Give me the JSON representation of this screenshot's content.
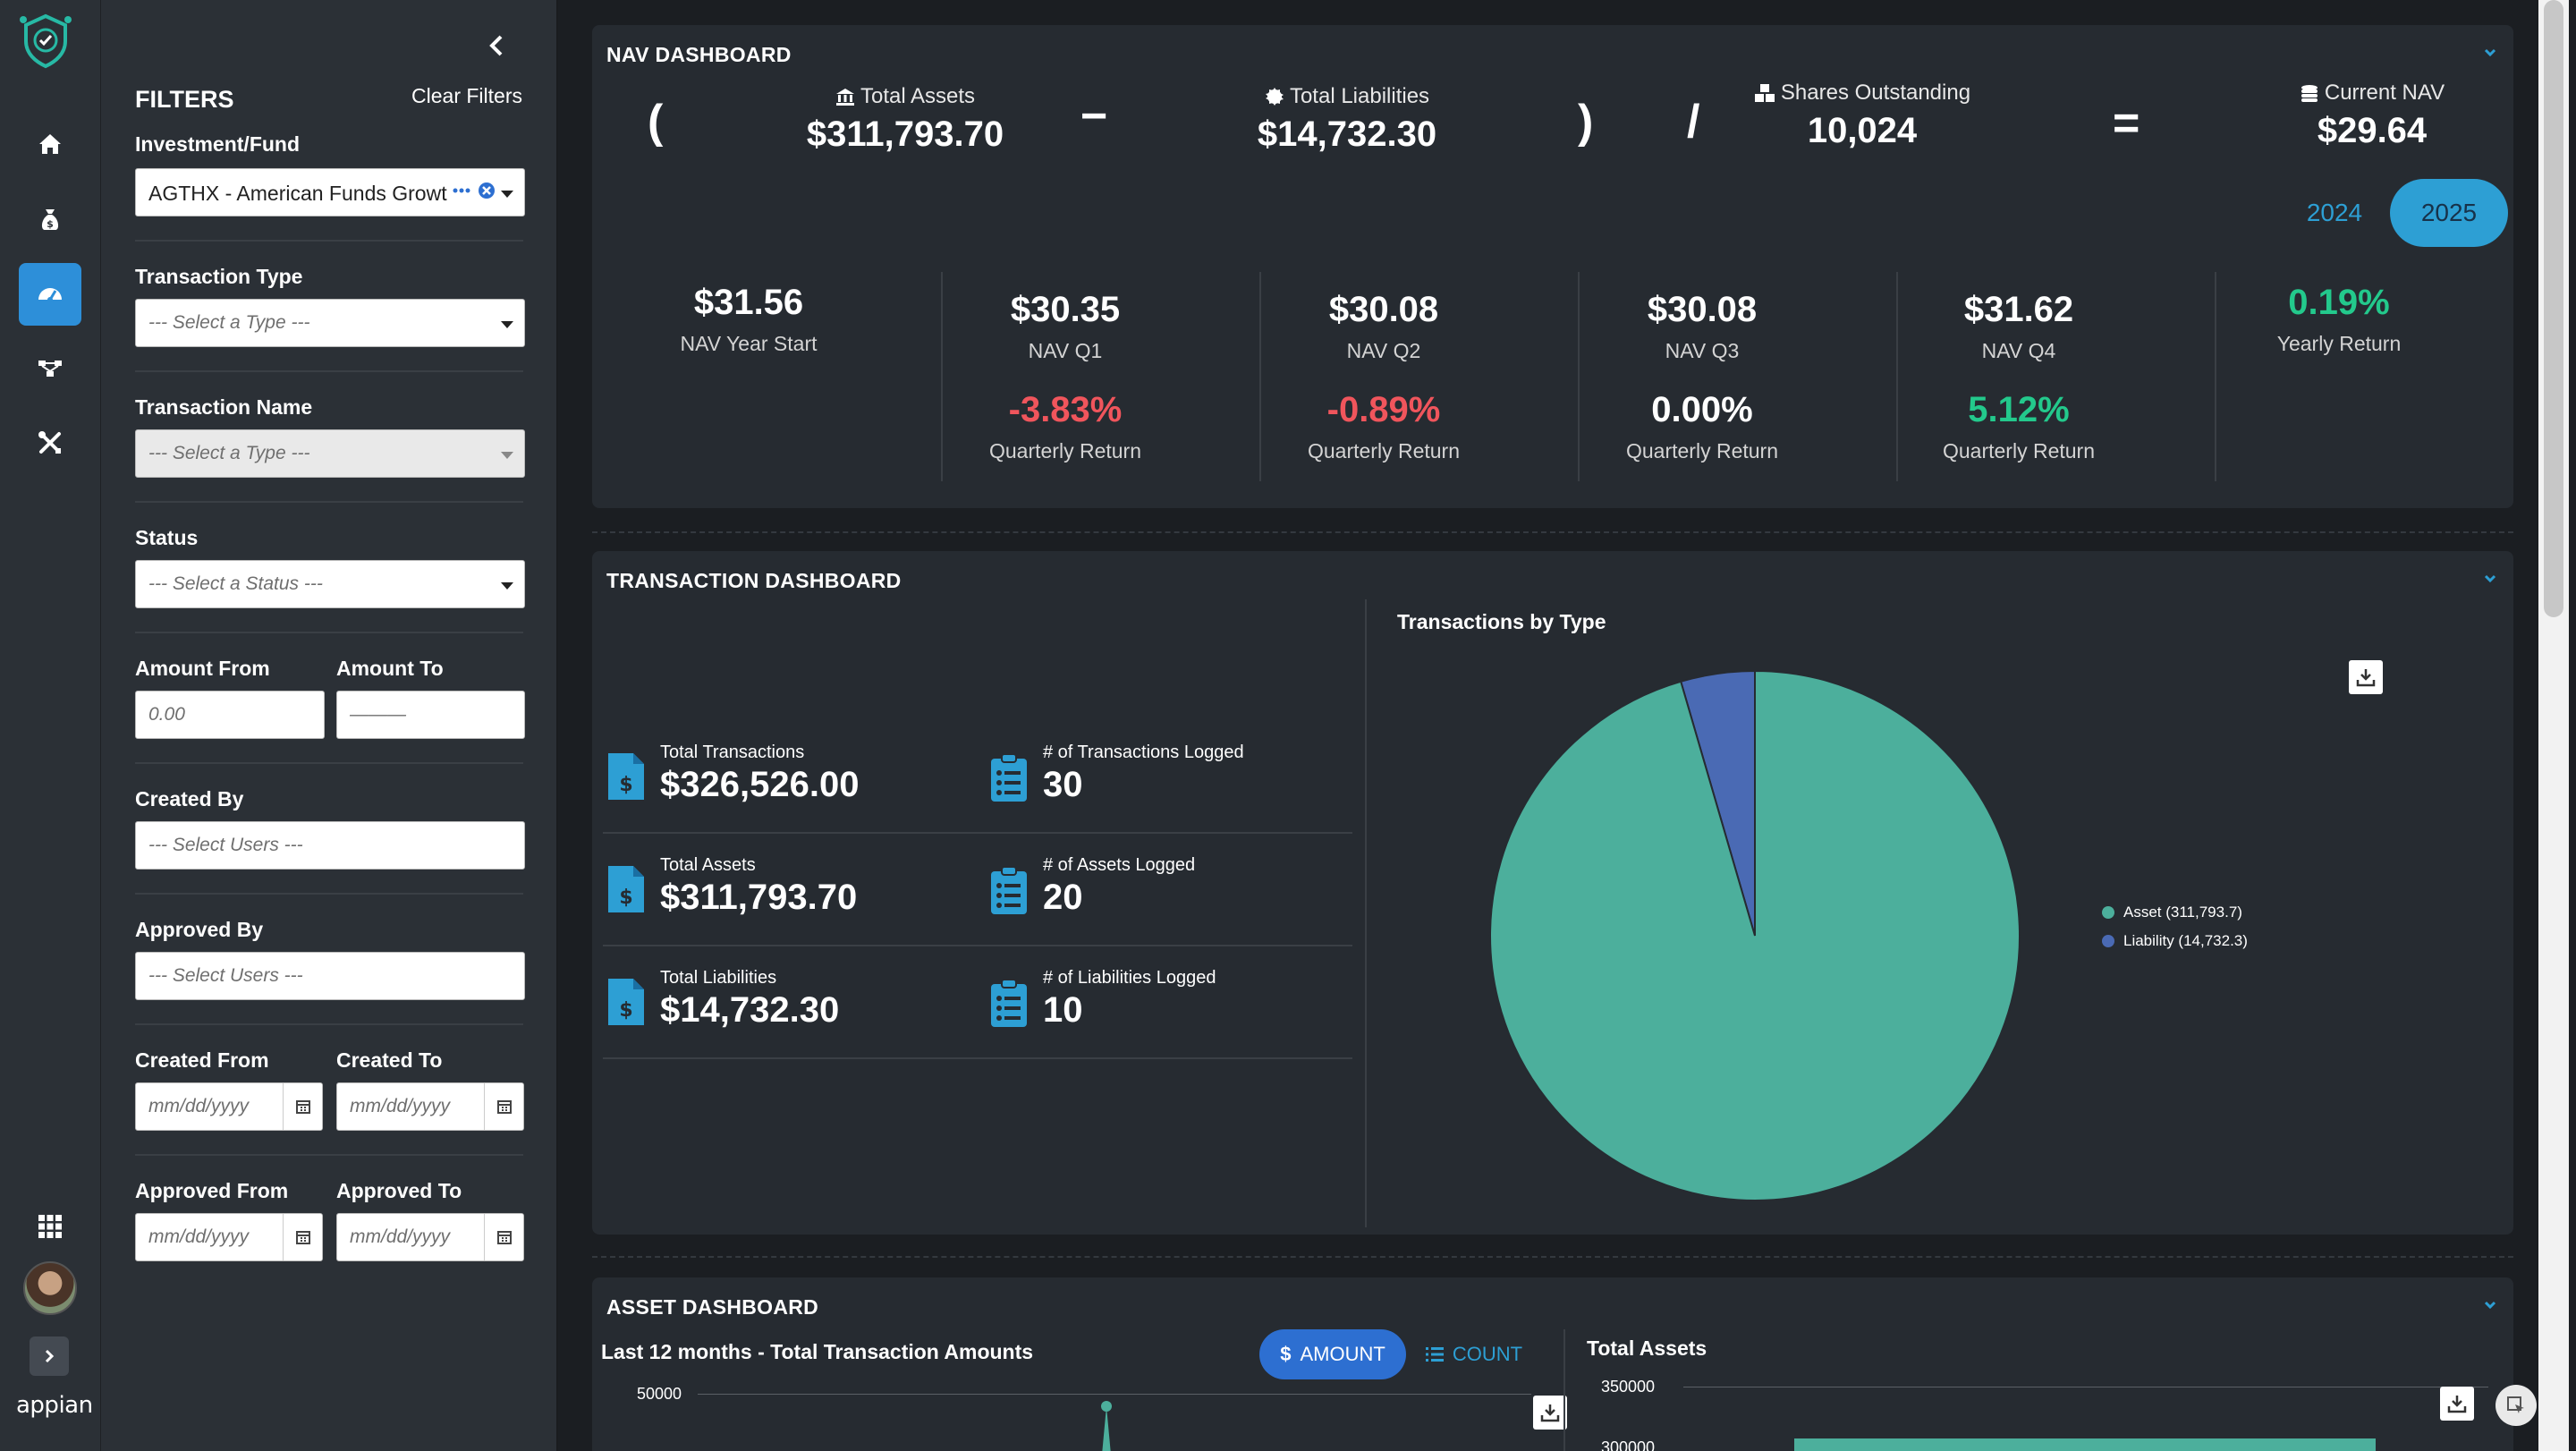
{
  "colors": {
    "accent": "#2d8fd9",
    "teal": "#4caf9c",
    "liability": "#4a6ab4",
    "negative": "#f0555c",
    "positive": "#23c98c",
    "year_active": "#2d9fd4"
  },
  "rail": {
    "items": [
      "logo-icon",
      "home-icon",
      "money-bag-icon",
      "dashboard-gauge-icon",
      "workflow-icon",
      "tools-icon"
    ],
    "brand": "appian"
  },
  "filters": {
    "title": "FILTERS",
    "clear": "Clear Filters",
    "investment_label": "Investment/Fund",
    "investment_value": "AGTHX - American Funds Growt",
    "transaction_type_label": "Transaction Type",
    "transaction_type_placeholder": "--- Select a Type ---",
    "transaction_name_label": "Transaction Name",
    "transaction_name_placeholder": "--- Select a Type ---",
    "status_label": "Status",
    "status_placeholder": "--- Select a Status ---",
    "amount_from_label": "Amount From",
    "amount_from_placeholder": "0.00",
    "amount_to_label": "Amount To",
    "amount_to_placeholder": "———",
    "created_by_label": "Created By",
    "created_by_placeholder": "--- Select Users ---",
    "approved_by_label": "Approved By",
    "approved_by_placeholder": "--- Select Users ---",
    "created_from_label": "Created From",
    "created_to_label": "Created To",
    "approved_from_label": "Approved From",
    "approved_to_label": "Approved To",
    "date_placeholder": "mm/dd/yyyy"
  },
  "nav": {
    "title": "NAV DASHBOARD",
    "open_paren": "(",
    "minus": "−",
    "close_paren": ")",
    "divide": "/",
    "equals": "=",
    "total_assets_label": "Total Assets",
    "total_assets": "$311,793.70",
    "total_liabilities_label": "Total Liabilities",
    "total_liabilities": "$14,732.30",
    "shares_label": "Shares Outstanding",
    "shares": "10,024",
    "current_nav_label": "Current NAV",
    "current_nav": "$29.64",
    "years": [
      "2024",
      "2025"
    ],
    "active_year": "2025",
    "year_start_value": "$31.56",
    "year_start_label": "NAV Year Start",
    "quarters": [
      {
        "value": "$30.35",
        "label": "NAV Q1",
        "ret": "-3.83%",
        "ret_label": "Quarterly Return"
      },
      {
        "value": "$30.08",
        "label": "NAV Q2",
        "ret": "-0.89%",
        "ret_label": "Quarterly Return"
      },
      {
        "value": "$30.08",
        "label": "NAV Q3",
        "ret": "0.00%",
        "ret_label": "Quarterly Return"
      },
      {
        "value": "$31.62",
        "label": "NAV Q4",
        "ret": "5.12%",
        "ret_label": "Quarterly Return"
      }
    ],
    "yearly_return": "0.19%",
    "yearly_return_label": "Yearly Return"
  },
  "transactions": {
    "title": "TRANSACTION DASHBOARD",
    "kpis": [
      {
        "label": "Total Transactions",
        "value": "$326,526.00",
        "count_label": "# of Transactions Logged",
        "count": "30"
      },
      {
        "label": "Total Assets",
        "value": "$311,793.70",
        "count_label": "# of Assets Logged",
        "count": "20"
      },
      {
        "label": "Total Liabilities",
        "value": "$14,732.30",
        "count_label": "# of Liabilities Logged",
        "count": "10"
      }
    ]
  },
  "chart_data": [
    {
      "type": "pie",
      "title": "Transactions by Type",
      "categories": [
        "Asset",
        "Liability"
      ],
      "values": [
        311793.7,
        14732.3
      ],
      "legend": [
        "Asset (311,793.7)",
        "Liability (14,732.3)"
      ],
      "legend_position": "right"
    },
    {
      "type": "line",
      "title": "Last 12 months - Total Transaction Amounts",
      "y_ticks": [
        "50000"
      ]
    },
    {
      "type": "bar",
      "title": "Total Assets",
      "y_ticks": [
        "350000",
        "300000"
      ]
    }
  ],
  "asset": {
    "title": "ASSET DASHBOARD",
    "line_title": "Last 12 months - Total Transaction Amounts",
    "amount_btn": "AMOUNT",
    "count_btn": "COUNT",
    "tick_50000": "50000",
    "bar_title": "Total Assets",
    "tick_350000": "350000",
    "tick_300000": "300000"
  }
}
